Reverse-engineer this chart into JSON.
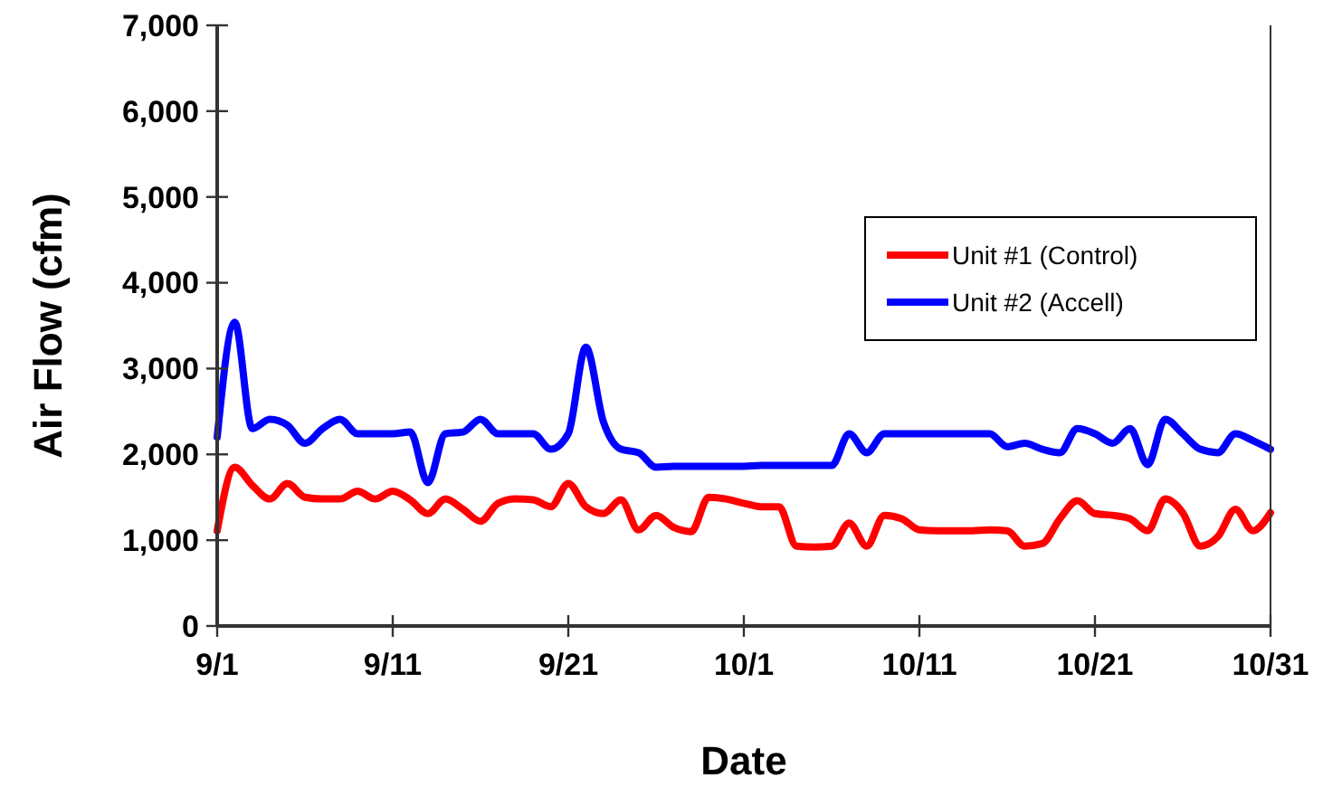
{
  "chart_data": {
    "type": "line",
    "xlabel": "Date",
    "ylabel": "Air Flow (cfm)",
    "x": [
      "--09-01",
      "--09-02",
      "--09-03",
      "--09-04",
      "--09-05",
      "--09-06",
      "--09-07",
      "--09-08",
      "--09-09",
      "--09-10",
      "--09-11",
      "--09-12",
      "--09-13",
      "--09-14",
      "--09-15",
      "--09-16",
      "--09-17",
      "--09-18",
      "--09-19",
      "--09-20",
      "--09-21",
      "--09-22",
      "--09-23",
      "--09-24",
      "--09-25",
      "--09-26",
      "--09-27",
      "--09-28",
      "--09-29",
      "--09-30",
      "--10-01",
      "--10-02",
      "--10-03",
      "--10-04",
      "--10-05",
      "--10-06",
      "--10-07",
      "--10-08",
      "--10-09",
      "--10-10",
      "--10-11",
      "--10-12",
      "--10-13",
      "--10-14",
      "--10-15",
      "--10-16",
      "--10-17",
      "--10-18",
      "--10-19",
      "--10-20",
      "--10-21",
      "--10-22",
      "--10-23",
      "--10-24",
      "--10-25",
      "--10-26",
      "--10-27",
      "--10-28",
      "--10-29",
      "--10-30",
      "--10-31"
    ],
    "series": [
      {
        "name": "Unit #1 (Control)",
        "color": "#ff0000",
        "values": [
          1110,
          1850,
          1640,
          1480,
          1660,
          1500,
          1480,
          1480,
          1570,
          1480,
          1570,
          1470,
          1310,
          1480,
          1360,
          1220,
          1430,
          1480,
          1470,
          1390,
          1660,
          1390,
          1310,
          1470,
          1120,
          1290,
          1150,
          1100,
          1500,
          1480,
          1430,
          1390,
          1390,
          930,
          920,
          930,
          1200,
          930,
          1290,
          1250,
          1120,
          1110,
          1110,
          1110,
          1120,
          1110,
          930,
          960,
          1250,
          1460,
          1310,
          1290,
          1250,
          1110,
          1480,
          1320,
          930,
          1040,
          1360,
          1110,
          1320
        ]
      },
      {
        "name": "Unit #2 (Accell)",
        "color": "#0000ff",
        "values": [
          2200,
          3540,
          2300,
          2410,
          2340,
          2130,
          2300,
          2410,
          2240,
          2240,
          2240,
          2260,
          1670,
          2240,
          2260,
          2410,
          2240,
          2240,
          2240,
          2060,
          2240,
          3250,
          2380,
          2060,
          2020,
          1850,
          1860,
          1860,
          1860,
          1860,
          1860,
          1870,
          1870,
          1870,
          1870,
          1870,
          2240,
          2020,
          2240,
          2240,
          2240,
          2240,
          2240,
          2240,
          2240,
          2090,
          2130,
          2060,
          2020,
          2300,
          2240,
          2130,
          2300,
          1880,
          2410,
          2240,
          2060,
          2020,
          2240,
          2160,
          2060
        ]
      }
    ],
    "xlim": [
      "--09-01",
      "--10-31"
    ],
    "xticks": [
      {
        "value": "--09-01",
        "label": "9/1"
      },
      {
        "value": "--09-11",
        "label": "9/11"
      },
      {
        "value": "--09-21",
        "label": "9/21"
      },
      {
        "value": "--10-01",
        "label": "10/1"
      },
      {
        "value": "--10-11",
        "label": "10/11"
      },
      {
        "value": "--10-21",
        "label": "10/21"
      },
      {
        "value": "--10-31",
        "label": "10/31"
      }
    ],
    "ylim": [
      0,
      7000
    ],
    "yticks": [
      0,
      {
        "value": 1000,
        "label": "1,000"
      },
      {
        "value": 2000,
        "label": "2,000"
      },
      {
        "value": 3000,
        "label": "3,000"
      },
      {
        "value": 4000,
        "label": "4,000"
      },
      {
        "value": 5000,
        "label": "5,000"
      },
      {
        "value": 6000,
        "label": "6,000"
      },
      {
        "value": 7000,
        "label": "7,000"
      }
    ],
    "legend": "right",
    "grid": false,
    "line_style": "solid"
  }
}
